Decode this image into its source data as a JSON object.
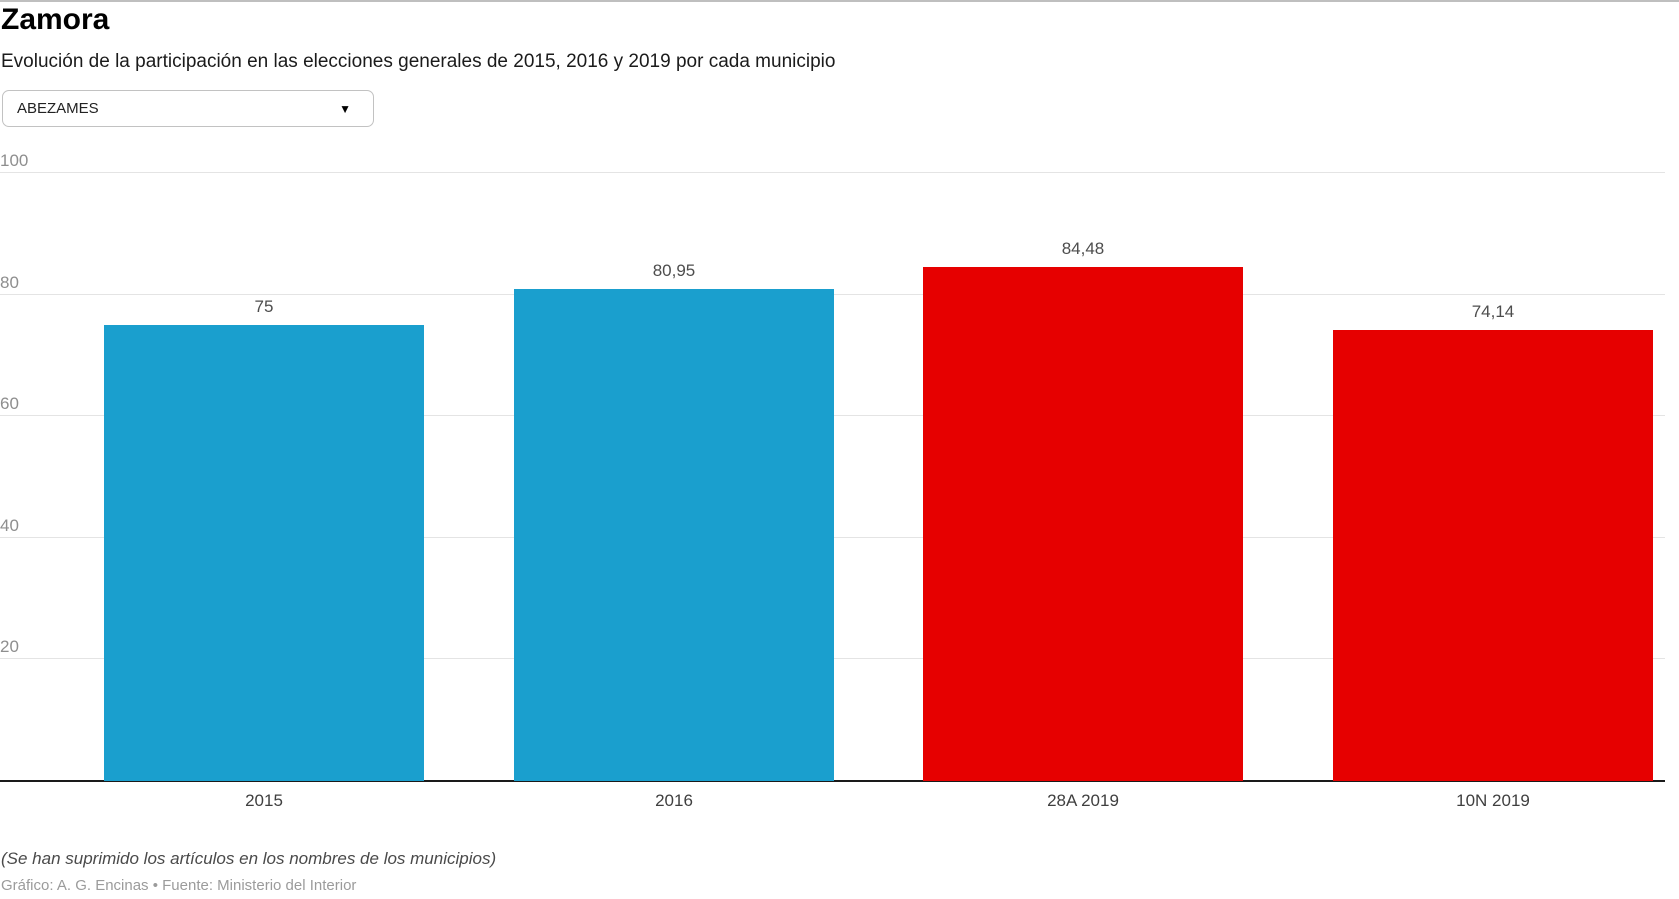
{
  "header": {
    "title": "Zamora",
    "subtitle": "Evolución de la participación en las elecciones generales de 2015, 2016 y 2019 por cada municipio"
  },
  "municipality_select": {
    "value": "ABEZAMES",
    "arrow_icon": "▼"
  },
  "chart_data": {
    "type": "bar",
    "categories": [
      "2015",
      "2016",
      "28A 2019",
      "10N 2019"
    ],
    "values": [
      75,
      80.95,
      84.48,
      74.14
    ],
    "value_labels": [
      "75",
      "80,95",
      "84,48",
      "74,14"
    ],
    "bar_colors": [
      "#1A9FCE",
      "#1A9FCE",
      "#E60000",
      "#E60000"
    ],
    "title": "",
    "xlabel": "",
    "ylabel": "",
    "ylim": [
      0,
      100
    ],
    "yticks": [
      20,
      40,
      60,
      80,
      100
    ],
    "grid": true,
    "legend": "none",
    "colors": {
      "blue_2015_2016": "#1A9FCE",
      "red_2019": "#E60000",
      "gridline": "#E4E4E4",
      "axis_baseline": "#1A1A1A",
      "value_label": "#4D4D4D",
      "tick_label": "#8E8E8E"
    }
  },
  "footer": {
    "note": "(Se han suprimido los artículos en los nombres de los municipios)",
    "credit": "Gráfico: A. G. Encinas • Fuente: Ministerio del Interior"
  }
}
